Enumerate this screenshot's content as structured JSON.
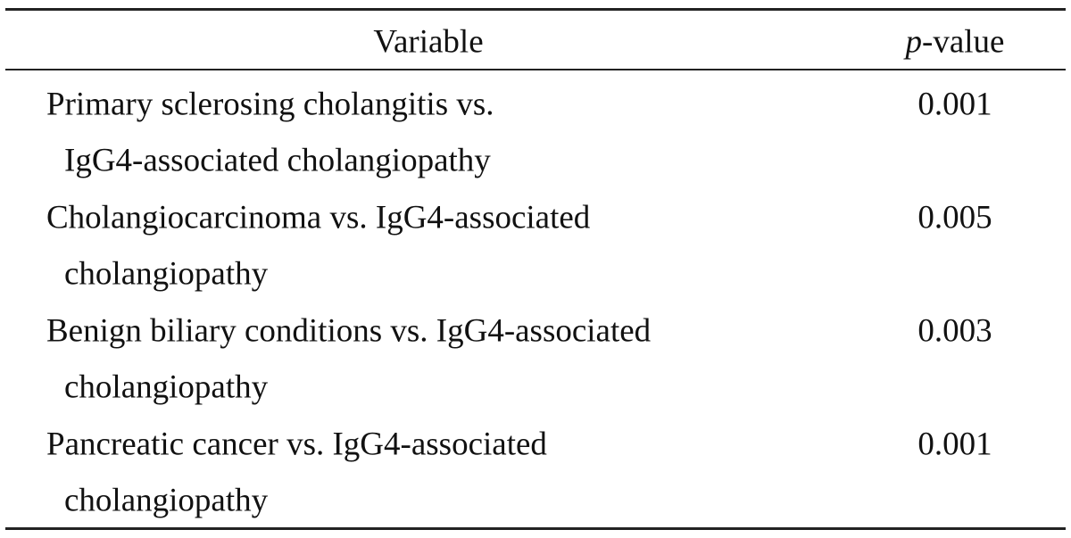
{
  "table": {
    "header": [
      "Variable",
      [
        {
          "text": "p",
          "italic": true
        },
        {
          "text": "-value",
          "italic": false
        }
      ]
    ],
    "rows": [
      {
        "variable": [
          "Primary sclerosing cholangitis vs.",
          "IgG4-associated cholangiopathy"
        ],
        "p_value": "0.001"
      },
      {
        "variable": [
          "Cholangiocarcinoma vs. IgG4-associated",
          "cholangiopathy"
        ],
        "p_value": "0.005"
      },
      {
        "variable": [
          "Benign biliary conditions vs. IgG4-associated",
          "cholangiopathy"
        ],
        "p_value": "0.003"
      },
      {
        "variable": [
          "Pancreatic cancer vs. IgG4-associated",
          "cholangiopathy"
        ],
        "p_value": "0.001"
      }
    ]
  }
}
